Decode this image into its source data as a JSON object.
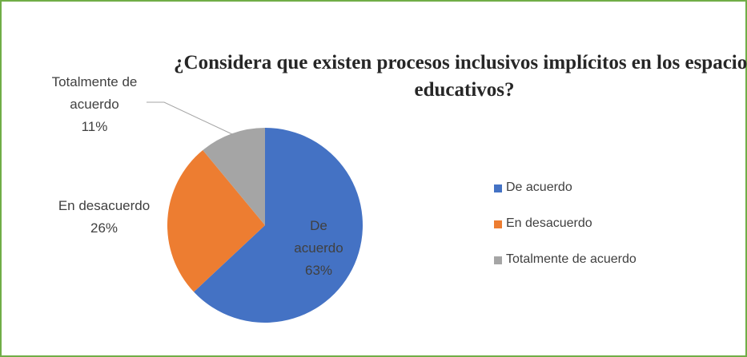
{
  "chart_data": {
    "type": "pie",
    "title": "¿Considera que existen procesos inclusivos implícitos en los espacios educativos?",
    "categories": [
      "De acuerdo",
      "En desacuerdo",
      "Totalmente de acuerdo"
    ],
    "values": [
      63,
      26,
      11
    ],
    "value_labels": [
      "63%",
      "26%",
      "11%"
    ],
    "colors": [
      "#4472c4",
      "#ed7d31",
      "#a5a5a5"
    ],
    "legend": "right"
  }
}
